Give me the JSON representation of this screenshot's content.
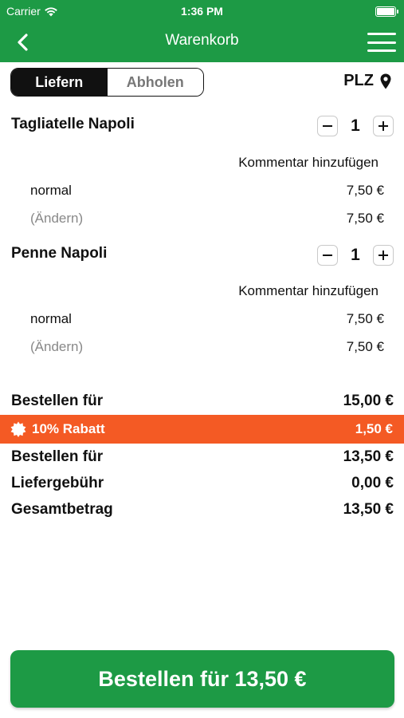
{
  "status_bar": {
    "carrier": "Carrier",
    "time": "1:36 PM"
  },
  "nav": {
    "title": "Warenkorb"
  },
  "delivery_toggle": {
    "deliver": "Liefern",
    "pickup": "Abholen",
    "selected": "Liefern"
  },
  "postcode": {
    "label": "PLZ"
  },
  "items": [
    {
      "name": "Tagliatelle Napoli",
      "quantity": "1",
      "comment": "Kommentar hinzufügen",
      "option": "normal",
      "option_price": "7,50 €",
      "change": "(Ändern)",
      "change_price": "7,50 €"
    },
    {
      "name": "Penne Napoli",
      "quantity": "1",
      "comment": "Kommentar hinzufügen",
      "option": "normal",
      "option_price": "7,50 €",
      "change": "(Ändern)",
      "change_price": "7,50 €"
    }
  ],
  "summary": {
    "subtotal_label": "Bestellen für",
    "subtotal": "15,00 €",
    "discount_label": "10% Rabatt",
    "discount": "1,50 €",
    "after_discount_label": "Bestellen für",
    "after_discount": "13,50 €",
    "delivery_fee_label": "Liefergebühr",
    "delivery_fee": "0,00 €",
    "total_label": "Gesamtbetrag",
    "total": "13,50 €"
  },
  "order_button": {
    "label": "Bestellen für 13,50 €"
  },
  "colors": {
    "brand_green": "#1d9a45",
    "discount_orange": "#f45a24"
  },
  "icons": {
    "wifi": "wifi-icon",
    "battery": "battery-icon",
    "back": "chevron-left-icon",
    "menu": "hamburger-menu-icon",
    "location": "location-pin-icon",
    "minus": "minus-icon",
    "plus": "plus-icon",
    "discount": "discount-badge-icon"
  }
}
